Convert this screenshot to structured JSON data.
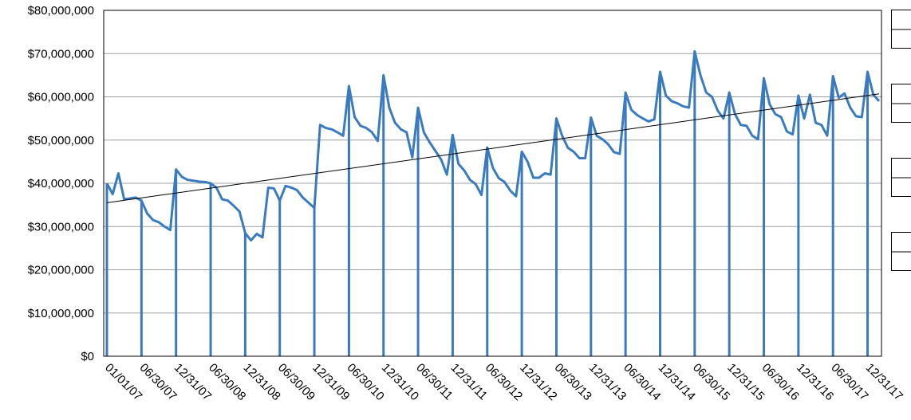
{
  "chart_data": {
    "type": "line",
    "categories": [
      "01/01/07",
      null,
      null,
      null,
      null,
      null,
      "06/30/07",
      null,
      null,
      null,
      null,
      null,
      "12/31/07",
      null,
      null,
      null,
      null,
      null,
      "06/30/08",
      null,
      null,
      null,
      null,
      null,
      "12/31/08",
      null,
      null,
      null,
      null,
      null,
      "06/30/09",
      null,
      null,
      null,
      null,
      null,
      "12/31/09",
      null,
      null,
      null,
      null,
      null,
      "06/30/10",
      null,
      null,
      null,
      null,
      null,
      "12/31/10",
      null,
      null,
      null,
      null,
      null,
      "06/30/11",
      null,
      null,
      null,
      null,
      null,
      "12/31/11",
      null,
      null,
      null,
      null,
      null,
      "06/30/12",
      null,
      null,
      null,
      null,
      null,
      "12/31/12",
      null,
      null,
      null,
      null,
      null,
      "06/30/13",
      null,
      null,
      null,
      null,
      null,
      "12/31/13",
      null,
      null,
      null,
      null,
      null,
      "06/30/14",
      null,
      null,
      null,
      null,
      null,
      "12/31/14",
      null,
      null,
      null,
      null,
      null,
      "06/30/15",
      null,
      null,
      null,
      null,
      null,
      "12/31/15",
      null,
      null,
      null,
      null,
      null,
      "06/30/16",
      null,
      null,
      null,
      null,
      null,
      "12/31/16",
      null,
      null,
      null,
      null,
      null,
      "06/30/17",
      null,
      null,
      null,
      null,
      null,
      "12/31/17",
      null,
      null
    ],
    "values": [
      40000000,
      37500000,
      42300000,
      36300000,
      36500000,
      36700000,
      36000000,
      33000000,
      31500000,
      31000000,
      30000000,
      29200000,
      43200000,
      41500000,
      40800000,
      40600000,
      40400000,
      40300000,
      40000000,
      39000000,
      36300000,
      36000000,
      34800000,
      33500000,
      28500000,
      26800000,
      28300000,
      27500000,
      39000000,
      38800000,
      36000000,
      39400000,
      39000000,
      38400000,
      36700000,
      35500000,
      34300000,
      53500000,
      52800000,
      52500000,
      51800000,
      51000000,
      62500000,
      55300000,
      53300000,
      52800000,
      51800000,
      49800000,
      65000000,
      57500000,
      54000000,
      52500000,
      51800000,
      46000000,
      57500000,
      51800000,
      49500000,
      47500000,
      45500000,
      42000000,
      51200000,
      44500000,
      43000000,
      40800000,
      39800000,
      37300000,
      48300000,
      43500000,
      41200000,
      40300000,
      38300000,
      37000000,
      47300000,
      45000000,
      41300000,
      41300000,
      42300000,
      42000000,
      55000000,
      51000000,
      48200000,
      47300000,
      45800000,
      45800000,
      55200000,
      51000000,
      50200000,
      49000000,
      47200000,
      46800000,
      61000000,
      57000000,
      55800000,
      55000000,
      54300000,
      54800000,
      65800000,
      60300000,
      59000000,
      58500000,
      57800000,
      57500000,
      70500000,
      65000000,
      61000000,
      60000000,
      56800000,
      55000000,
      61000000,
      56000000,
      53500000,
      53300000,
      51000000,
      50200000,
      64300000,
      58300000,
      56000000,
      55300000,
      52000000,
      51300000,
      60300000,
      55000000,
      60500000,
      54000000,
      53500000,
      51000000,
      64800000,
      59800000,
      60800000,
      57500000,
      55500000,
      55300000,
      65800000,
      60500000,
      59000000
    ],
    "color": "#3a7bbf",
    "bar_color": "#a8c6e6",
    "trend": [
      35500000,
      60700000
    ],
    "ylim": [
      0,
      80000000
    ],
    "yticks": [
      {
        "value": 0,
        "label": "$0"
      },
      {
        "value": 10000000,
        "label": "$10,000,000"
      },
      {
        "value": 20000000,
        "label": "$20,000,000"
      },
      {
        "value": 30000000,
        "label": "$30,000,000"
      },
      {
        "value": 40000000,
        "label": "$40,000,000"
      },
      {
        "value": 50000000,
        "label": "$50,000,000"
      },
      {
        "value": 60000000,
        "label": "$60,000,000"
      },
      {
        "value": 70000000,
        "label": "$70,000,000"
      },
      {
        "value": 80000000,
        "label": "$80,000,000"
      }
    ],
    "grid": true
  }
}
